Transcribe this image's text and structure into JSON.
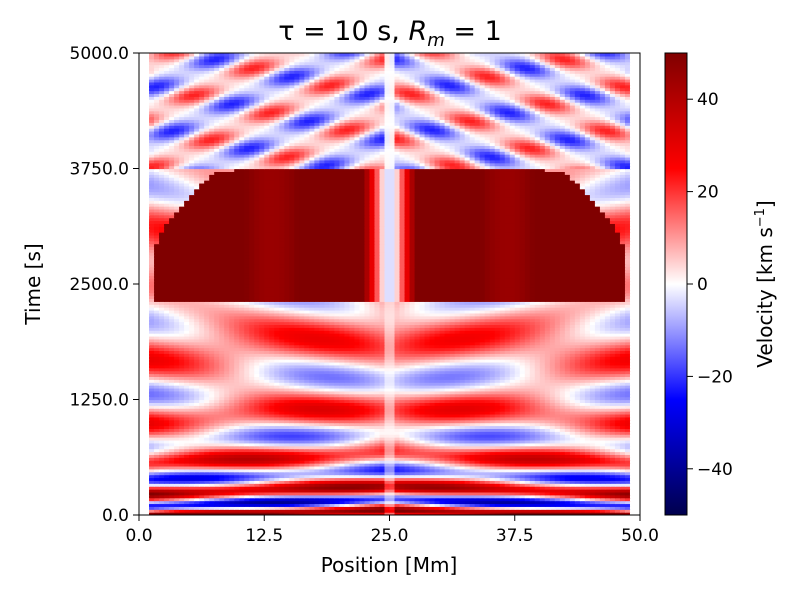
{
  "chart_data": {
    "type": "heatmap",
    "title": {
      "prefix": "τ = 10 s, ",
      "symbol": "R",
      "subscript": "m",
      "suffix": " = 1"
    },
    "xlabel": "Position [Mm]",
    "ylabel": "Time [s]",
    "xlim": [
      0,
      50
    ],
    "ylim": [
      0,
      5000
    ],
    "xticks": [
      0.0,
      12.5,
      25.0,
      37.5,
      50.0
    ],
    "xtick_labels": [
      "0.0",
      "12.5",
      "25.0",
      "37.5",
      "50.0"
    ],
    "yticks": [
      0.0,
      1250.0,
      2500.0,
      3750.0,
      5000.0
    ],
    "ytick_labels": [
      "0.0",
      "1250.0",
      "2500.0",
      "3750.0",
      "5000.0"
    ],
    "colorbar": {
      "label": "Velocity [km s",
      "label_exp": "−1",
      "label_close": "]",
      "range": [
        -50,
        50
      ],
      "ticks": [
        40,
        20,
        0,
        -20,
        -40
      ],
      "tick_labels": [
        "40",
        "20",
        "0",
        "−20",
        "−40"
      ],
      "colormap": "seismic",
      "stops": [
        "#00004d",
        "#0000ff",
        "#ffffff",
        "#ff0000",
        "#800000"
      ]
    },
    "features": {
      "saturated_region_time": [
        2300,
        3750
      ],
      "saturated_region_position": [
        1.5,
        48.5
      ],
      "mirror_axis_position": 25.0,
      "oscillation_band_time": [
        0,
        2300
      ],
      "crossing_waves_time": [
        3750,
        5000
      ]
    }
  }
}
